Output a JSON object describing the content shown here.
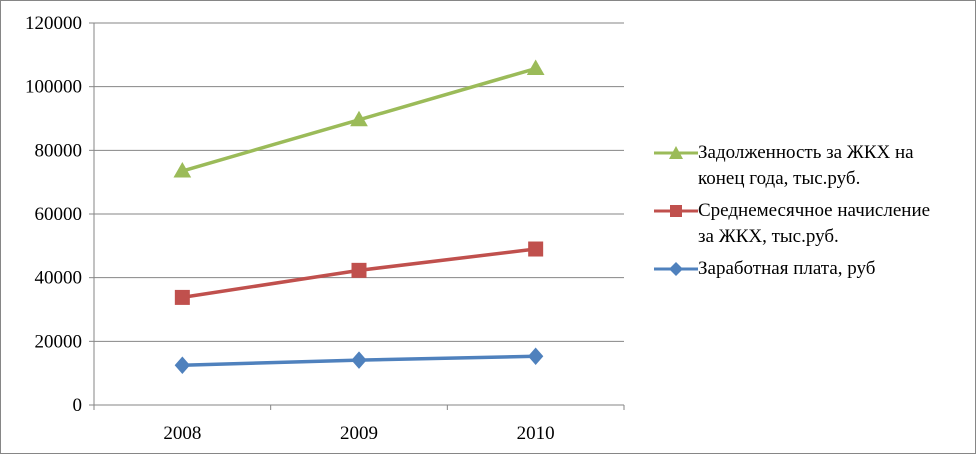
{
  "chart_data": {
    "type": "line",
    "categories": [
      "2008",
      "2009",
      "2010"
    ],
    "ylim": [
      0,
      120000
    ],
    "yticks": [
      "0",
      "20000",
      "40000",
      "60000",
      "80000",
      "100000",
      "120000"
    ],
    "grid": true,
    "legend_position": "right",
    "series": [
      {
        "name": "Задолженность за ЖКХ на конец года, тыс.руб.",
        "name_lines": [
          "Задолженность за ЖКХ на",
          "конец года, тыс.руб."
        ],
        "values": [
          73500,
          89600,
          105700
        ],
        "color": "#9BBB59",
        "marker": "triangle"
      },
      {
        "name": "Среднемесячное начисление за ЖКХ, тыс.руб.",
        "name_lines": [
          "Среднемесячное начисление",
          "за ЖКХ, тыс.руб."
        ],
        "values": [
          33800,
          42300,
          49000
        ],
        "color": "#C0504D",
        "marker": "square"
      },
      {
        "name": "Заработная плата, руб",
        "name_lines": [
          "Заработная плата, руб"
        ],
        "values": [
          12500,
          14100,
          15300
        ],
        "color": "#4F81BD",
        "marker": "diamond"
      }
    ]
  }
}
